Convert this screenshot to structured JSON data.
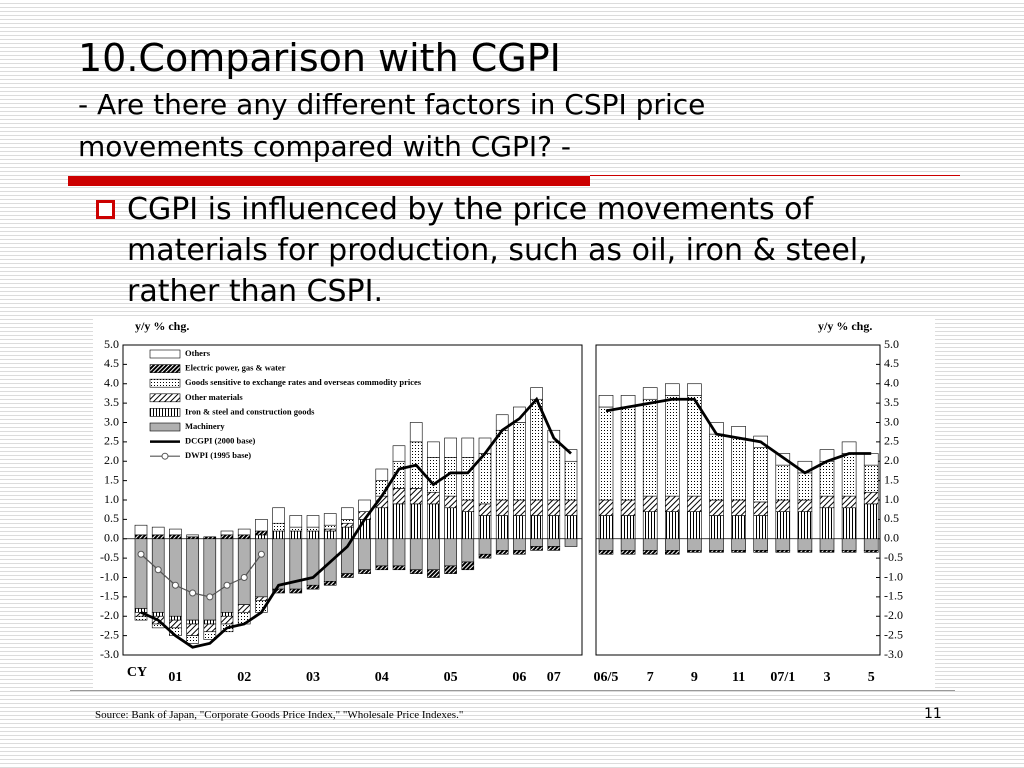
{
  "header": {
    "title": "10.Comparison with CGPI",
    "subtitle": [
      "- Are there any different factors in CSPI price",
      "movements compared with CGPI? -"
    ]
  },
  "bullet": [
    "CGPI is influenced by the price movements of",
    "materials for production, such as oil, iron & steel,",
    "rather than CSPI."
  ],
  "source": "Source: Bank of Japan, \"Corporate Goods Price Index,\" \"Wholesale Price Indexes.\"",
  "page_number": "11",
  "chart_data": [
    {
      "type": "bar",
      "stacked": true,
      "y_label": "y/y % chg.",
      "x_label": "CY",
      "categories": [
        null,
        null,
        "01",
        null,
        null,
        null,
        "02",
        null,
        null,
        null,
        "03",
        null,
        null,
        null,
        "04",
        null,
        null,
        null,
        "05",
        null,
        null,
        null,
        "06",
        null,
        "07",
        null
      ],
      "ylim": [
        -3,
        5
      ],
      "yticks": [
        {
          "value": 5,
          "label": "5.0"
        },
        4.5,
        {
          "value": 4,
          "label": "4.0"
        },
        3.5,
        {
          "value": 3,
          "label": "3.0"
        },
        2.5,
        {
          "value": 2,
          "label": "2.0"
        },
        1.5,
        {
          "value": 1,
          "label": "1.0"
        },
        0.5,
        {
          "value": 0,
          "label": "0.0"
        },
        -0.5,
        {
          "value": -1,
          "label": "-1.0"
        },
        -1.5,
        {
          "value": -2,
          "label": "-2.0"
        },
        -2.5,
        {
          "value": -3,
          "label": "-3.0"
        }
      ],
      "legend": true,
      "series": [
        {
          "name": "Others",
          "pattern": "white",
          "values": [
            0.25,
            0.2,
            0.15,
            0.05,
            0,
            0.1,
            0.15,
            0.3,
            0.4,
            0.3,
            0.3,
            0.3,
            0.3,
            0.3,
            0.3,
            0.4,
            0.5,
            0.4,
            0.5,
            0.5,
            0.4,
            0.4,
            0.4,
            0.3,
            0.3,
            0.3
          ]
        },
        {
          "name": "Electric power, gas & water",
          "pattern": "dense",
          "values": [
            0.1,
            0.1,
            0.1,
            0.05,
            0.05,
            0.1,
            0.1,
            0.1,
            -0.1,
            -0.1,
            -0.1,
            -0.1,
            -0.1,
            -0.1,
            -0.1,
            -0.1,
            -0.1,
            -0.2,
            -0.2,
            -0.2,
            -0.1,
            -0.1,
            -0.1,
            -0.1,
            -0.1,
            0
          ]
        },
        {
          "name": "Goods sensitive to exchange rates and overseas commodity prices",
          "pattern": "dots",
          "values": [
            -0.1,
            -0.1,
            -0.2,
            -0.2,
            -0.2,
            -0.2,
            -0.3,
            -0.3,
            0.2,
            0.1,
            0.1,
            0.1,
            0.1,
            0,
            0.4,
            0.7,
            1.2,
            0.9,
            1.0,
            1.1,
            1.3,
            1.8,
            2.0,
            2.6,
            1.5,
            1.0
          ]
        },
        {
          "name": "Other materials",
          "pattern": "hatch",
          "values": [
            -0.1,
            -0.2,
            -0.2,
            -0.3,
            -0.2,
            -0.2,
            -0.2,
            -0.1,
            0,
            0,
            0,
            0.05,
            0.1,
            0.2,
            0.3,
            0.4,
            0.4,
            0.3,
            0.3,
            0.3,
            0.3,
            0.4,
            0.4,
            0.4,
            0.4,
            0.4
          ]
        },
        {
          "name": "Iron & steel and construction goods",
          "pattern": "vlines",
          "values": [
            -0.1,
            -0.1,
            -0.1,
            -0.1,
            -0.1,
            -0.1,
            0,
            0.1,
            0.2,
            0.2,
            0.2,
            0.2,
            0.3,
            0.5,
            0.8,
            0.9,
            0.9,
            0.9,
            0.8,
            0.7,
            0.6,
            0.6,
            0.6,
            0.6,
            0.6,
            0.6
          ]
        },
        {
          "name": "Machinery",
          "pattern": "gray",
          "values": [
            -1.8,
            -1.9,
            -2.0,
            -2.1,
            -2.1,
            -1.9,
            -1.7,
            -1.5,
            -1.3,
            -1.3,
            -1.2,
            -1.1,
            -0.9,
            -0.8,
            -0.7,
            -0.7,
            -0.8,
            -0.8,
            -0.7,
            -0.6,
            -0.4,
            -0.3,
            -0.3,
            -0.2,
            -0.2,
            -0.2
          ]
        },
        {
          "name": "DCGPI (2000 base)",
          "type": "line",
          "color": "#000000",
          "values": [
            -1.9,
            -2.1,
            -2.5,
            -2.8,
            -2.7,
            -2.3,
            -2.2,
            -1.9,
            -1.2,
            -1.1,
            -1.0,
            -0.6,
            -0.2,
            0.5,
            1.1,
            1.8,
            1.9,
            1.4,
            1.7,
            1.7,
            2.2,
            2.8,
            3.1,
            3.6,
            2.6,
            2.2
          ]
        },
        {
          "name": "DWPI (1995 base)",
          "type": "line",
          "marker": "circle",
          "color": "#555555",
          "values": [
            -0.4,
            -0.8,
            -1.2,
            -1.4,
            -1.5,
            -1.2,
            -1.0,
            -0.4,
            null,
            null,
            null,
            null,
            null,
            null,
            null,
            null,
            null,
            null,
            null,
            null,
            null,
            null,
            null,
            null,
            null,
            null
          ]
        }
      ]
    },
    {
      "type": "bar",
      "stacked": true,
      "y_label": "y/y % chg.",
      "categories": [
        "06/5",
        null,
        "7",
        null,
        "9",
        null,
        "11",
        null,
        "07/1",
        null,
        "3",
        null,
        "5"
      ],
      "ylim": [
        -3,
        5
      ],
      "yticks": [
        {
          "value": 5,
          "label": "5.0"
        },
        4.5,
        {
          "value": 4,
          "label": "4.0"
        },
        3.5,
        {
          "value": 3,
          "label": "3.0"
        },
        2.5,
        {
          "value": 2,
          "label": "2.0"
        },
        1.5,
        {
          "value": 1,
          "label": "1.0"
        },
        0.5,
        {
          "value": 0,
          "label": "0.0"
        },
        -0.5,
        {
          "value": -1,
          "label": "-1.0"
        },
        -1.5,
        {
          "value": -2,
          "label": "-2.0"
        },
        -2.5,
        {
          "value": -3,
          "label": "-3.0"
        }
      ],
      "legend": false,
      "series": [
        {
          "name": "Others",
          "pattern": "white",
          "values": [
            0.3,
            0.3,
            0.3,
            0.3,
            0.3,
            0.3,
            0.3,
            0.3,
            0.3,
            0.3,
            0.3,
            0.3,
            0.3
          ]
        },
        {
          "name": "Electric power, gas & water",
          "pattern": "dense",
          "values": [
            -0.1,
            -0.1,
            -0.1,
            -0.1,
            -0.05,
            -0.05,
            -0.05,
            -0.05,
            -0.05,
            -0.05,
            -0.05,
            -0.05,
            -0.05
          ]
        },
        {
          "name": "Goods sensitive to exchange rates and overseas commodity prices",
          "pattern": "dots",
          "values": [
            2.4,
            2.4,
            2.5,
            2.6,
            2.6,
            1.7,
            1.6,
            1.4,
            0.9,
            0.7,
            0.9,
            1.1,
            0.7
          ]
        },
        {
          "name": "Other materials",
          "pattern": "hatch",
          "values": [
            0.4,
            0.4,
            0.4,
            0.4,
            0.4,
            0.4,
            0.4,
            0.35,
            0.3,
            0.3,
            0.3,
            0.3,
            0.3
          ]
        },
        {
          "name": "Iron & steel and construction goods",
          "pattern": "vlines",
          "values": [
            0.6,
            0.6,
            0.7,
            0.7,
            0.7,
            0.6,
            0.6,
            0.6,
            0.7,
            0.7,
            0.8,
            0.8,
            0.9
          ]
        },
        {
          "name": "Machinery",
          "pattern": "gray",
          "values": [
            -0.3,
            -0.3,
            -0.3,
            -0.3,
            -0.3,
            -0.3,
            -0.3,
            -0.3,
            -0.3,
            -0.3,
            -0.3,
            -0.3,
            -0.3
          ]
        },
        {
          "name": "DCGPI (2000 base)",
          "type": "line",
          "color": "#000000",
          "values": [
            3.3,
            3.4,
            3.5,
            3.6,
            3.6,
            2.7,
            2.6,
            2.5,
            2.1,
            1.7,
            2.0,
            2.2,
            2.2
          ]
        }
      ]
    }
  ]
}
